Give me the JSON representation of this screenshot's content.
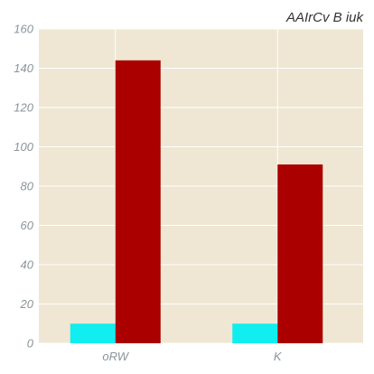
{
  "chart_data": {
    "type": "bar",
    "title": "AAIrCv  B iuk",
    "xlabel": "",
    "ylabel": "",
    "categories": [
      "oRW",
      "K"
    ],
    "series": [
      {
        "values": [
          10,
          10
        ],
        "color": "#10eef0"
      },
      {
        "values": [
          144,
          91
        ],
        "color": "#aa0000"
      }
    ],
    "ylim": [
      0,
      160
    ],
    "yticks": [
      0,
      20,
      40,
      60,
      80,
      100,
      120,
      140,
      160
    ],
    "grid": true,
    "background": "#efe7d3",
    "grid_color": "#ffffff"
  }
}
